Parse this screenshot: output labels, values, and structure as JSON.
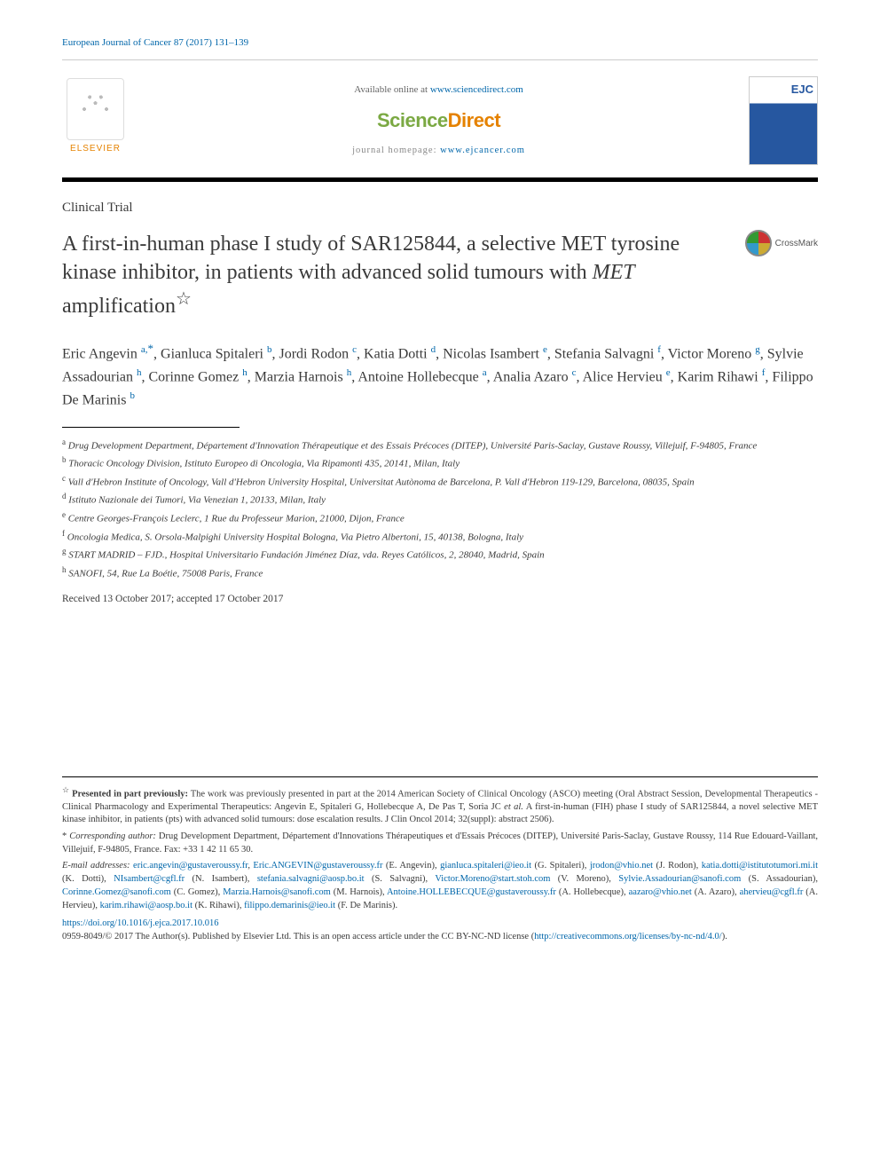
{
  "journal_ref": "European Journal of Cancer 87 (2017) 131–139",
  "header": {
    "elsevier": "ELSEVIER",
    "available": "Available online at ",
    "sd_url": "www.sciencedirect.com",
    "scidirect_a": "Science",
    "scidirect_b": "Direct",
    "homepage_label": "journal homepage: ",
    "homepage_url": "www.ejcancer.com",
    "cover_code": "EJC"
  },
  "article_type": "Clinical Trial",
  "title_a": "A first-in-human phase I study of SAR125844, a selective MET tyrosine kinase inhibitor, in patients with advanced solid tumours with ",
  "title_ital": "MET",
  "title_b": " amplification",
  "title_note": "☆",
  "crossmark": "CrossMark",
  "authors_html": "Eric Angevin <sup>a,</sup><span class='corr'>*</span>, Gianluca Spitaleri <sup>b</sup>, Jordi Rodon <sup>c</sup>, Katia Dotti <sup>d</sup>, Nicolas Isambert <sup>e</sup>, Stefania Salvagni <sup>f</sup>, Victor Moreno <sup>g</sup>, Sylvie Assadourian <sup>h</sup>, Corinne Gomez <sup>h</sup>, Marzia Harnois <sup>h</sup>, Antoine Hollebecque <sup>a</sup>, Analia Azaro <sup>c</sup>, Alice Hervieu <sup>e</sup>, Karim Rihawi <sup>f</sup>, Filippo De Marinis <sup>b</sup>",
  "affiliations": [
    {
      "sup": "a",
      "text": "Drug Development Department, Département d'Innovation Thérapeutique et des Essais Précoces (DITEP), Université Paris-Saclay, Gustave Roussy, Villejuif, F-94805, France"
    },
    {
      "sup": "b",
      "text": "Thoracic Oncology Division, Istituto Europeo di Oncologia, Via Ripamonti 435, 20141, Milan, Italy"
    },
    {
      "sup": "c",
      "text": "Vall d'Hebron Institute of Oncology, Vall d'Hebron University Hospital, Universitat Autònoma de Barcelona, P. Vall d'Hebron 119-129, Barcelona, 08035, Spain"
    },
    {
      "sup": "d",
      "text": "Istituto Nazionale dei Tumori, Via Venezian 1, 20133, Milan, Italy"
    },
    {
      "sup": "e",
      "text": "Centre Georges-François Leclerc, 1 Rue du Professeur Marion, 21000, Dijon, France"
    },
    {
      "sup": "f",
      "text": "Oncologia Medica, S. Orsola-Malpighi University Hospital Bologna, Via Pietro Albertoni, 15, 40138, Bologna, Italy"
    },
    {
      "sup": "g",
      "text": "START MADRID – FJD., Hospital Universitario Fundación Jiménez Díaz, vda. Reyes Católicos, 2, 28040, Madrid, Spain"
    },
    {
      "sup": "h",
      "text": "SANOFI, 54, Rue La Boétie, 75008 Paris, France"
    }
  ],
  "received": "Received 13 October 2017; accepted 17 October 2017",
  "footnotes": {
    "presented_label": "☆",
    "presented_bold": "Presented in part previously:",
    "presented_text": " The work was previously presented in part at the 2014 American Society of Clinical Oncology (ASCO) meeting (Oral Abstract Session, Developmental Therapeutics - Clinical Pharmacology and Experimental Therapeutics: Angevin E, Spitaleri G, Hollebecque A, De Pas T, Soria JC ",
    "presented_ital": "et al.",
    "presented_tail": " A first-in-human (FIH) phase I study of SAR125844, a novel selective MET kinase inhibitor, in patients (pts) with advanced solid tumours: dose escalation results. J Clin Oncol 2014; 32(suppl): abstract 2506).",
    "corr_label": "*",
    "corr_ital": "Corresponding author:",
    "corr_text": " Drug Development Department, Département d'Innovations Thérapeutiques et d'Essais Précoces (DITEP), Université Paris-Saclay, Gustave Roussy, 114 Rue Edouard-Vaillant, Villejuif, F-94805, France. Fax: +33 1 42 11 65 30.",
    "emails_label": "E-mail addresses:",
    "emails": [
      {
        "email": "eric.angevin@gustaveroussy.fr",
        "sep": ", "
      },
      {
        "email": "Eric.ANGEVIN@gustaveroussy.fr",
        "who": " (E. Angevin), "
      },
      {
        "email": "gianluca.spitaleri@ieo.it",
        "who": " (G. Spitaleri), "
      },
      {
        "email": "jrodon@vhio.net",
        "who": " (J. Rodon), "
      },
      {
        "email": "katia.dotti@istitutotumori.mi.it",
        "who": " (K. Dotti), "
      },
      {
        "email": "NIsambert@cgfl.fr",
        "who": " (N. Isambert), "
      },
      {
        "email": "stefania.salvagni@aosp.bo.it",
        "who": " (S. Salvagni), "
      },
      {
        "email": "Victor.Moreno@start.stoh.com",
        "who": " (V. Moreno), "
      },
      {
        "email": "Sylvie.Assadourian@sanofi.com",
        "who": " (S. Assadourian), "
      },
      {
        "email": "Corinne.Gomez@sanofi.com",
        "who": " (C. Gomez), "
      },
      {
        "email": "Marzia.Harnois@sanofi.com",
        "who": " (M. Harnois), "
      },
      {
        "email": "Antoine.HOLLEBECQUE@gustaveroussy.fr",
        "who": " (A. Hollebecque), "
      },
      {
        "email": "aazaro@vhio.net",
        "who": " (A. Azaro), "
      },
      {
        "email": "ahervieu@cgfl.fr",
        "who": " (A. Hervieu), "
      },
      {
        "email": "karim.rihawi@aosp.bo.it",
        "who": " (K. Rihawi), "
      },
      {
        "email": "filippo.demarinis@ieo.it",
        "who": " (F. De Marinis)."
      }
    ]
  },
  "doi": "https://doi.org/10.1016/j.ejca.2017.10.016",
  "copyright_a": "0959-8049/© 2017 The Author(s). Published by Elsevier Ltd. This is an open access article under the CC BY-NC-ND license (",
  "copyright_url": "http://creativecommons.org/licenses/by-nc-nd/4.0/",
  "copyright_b": ").",
  "colors": {
    "link": "#0066aa",
    "elsevier_orange": "#e58200",
    "scidirect_green": "#7ba943",
    "text": "#3a3a3a"
  },
  "typography": {
    "title_fontsize": 24,
    "author_fontsize": 16,
    "affil_fontsize": 11,
    "footnote_fontsize": 10.5,
    "font_family": "Georgia / Times serif"
  }
}
